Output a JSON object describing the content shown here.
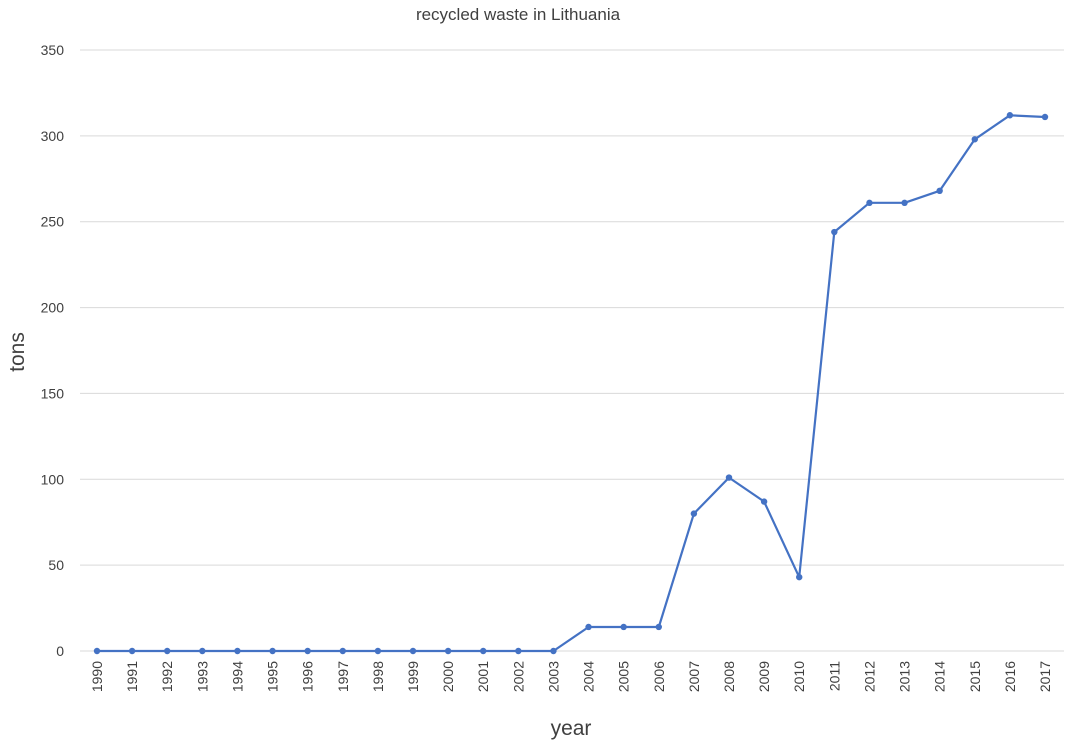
{
  "chart_data": {
    "type": "line",
    "title": "recycled waste in Lithuania",
    "xlabel": "year",
    "ylabel": "tons",
    "ylim": [
      0,
      350
    ],
    "yticks": [
      0,
      50,
      100,
      150,
      200,
      250,
      300,
      350
    ],
    "grid": true,
    "legend": "none",
    "line_color": "#4472c4",
    "x": [
      "1990",
      "1991",
      "1992",
      "1993",
      "1994",
      "1995",
      "1996",
      "1997",
      "1998",
      "1999",
      "2000",
      "2001",
      "2002",
      "2003",
      "2004",
      "2005",
      "2006",
      "2007",
      "2008",
      "2009",
      "2010",
      "2011",
      "2012",
      "2013",
      "2014",
      "2015",
      "2016",
      "2017"
    ],
    "series": [
      {
        "values": [
          0,
          0,
          0,
          0,
          0,
          0,
          0,
          0,
          0,
          0,
          0,
          0,
          0,
          0,
          14,
          14,
          14,
          80,
          101,
          87,
          43,
          244,
          261,
          261,
          268,
          298,
          312,
          311
        ]
      }
    ]
  }
}
